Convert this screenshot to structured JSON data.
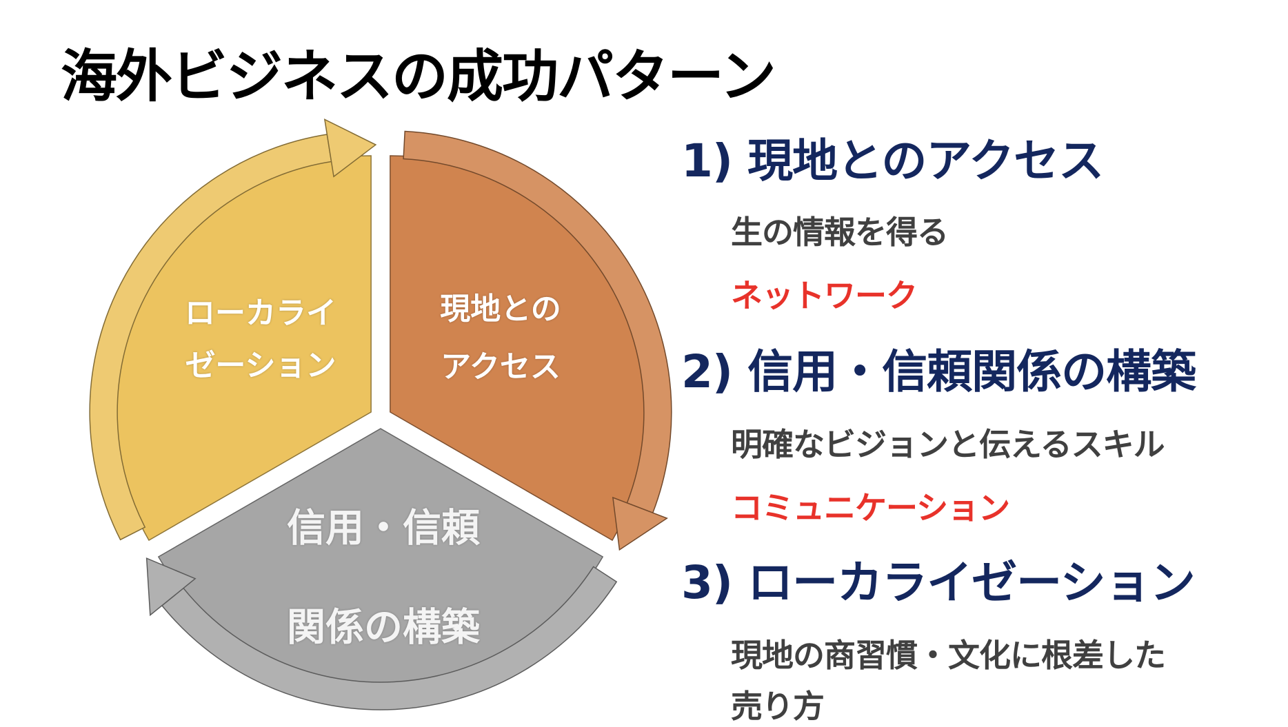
{
  "title": "海外ビジネスの成功パターン",
  "colors": {
    "orange": "#d0844f",
    "yellow": "#ecc35f",
    "gray": "#a6a6a6",
    "navy": "#14275e",
    "red": "#e8322a",
    "text": "#404040"
  },
  "diagram": {
    "segments": [
      {
        "id": "access",
        "lines": [
          "現地との",
          "アクセス"
        ],
        "color": "#d0844f"
      },
      {
        "id": "trust",
        "lines": [
          "信用・信頼",
          "関係の構築"
        ],
        "color": "#a6a6a6"
      },
      {
        "id": "localization",
        "lines": [
          "ローカライ",
          "ゼーション"
        ],
        "color": "#ecc35f"
      }
    ]
  },
  "points": [
    {
      "heading": "1) 現地とのアクセス",
      "detail": "生の情報を得る",
      "keyword": "ネットワーク"
    },
    {
      "heading": "2) 信用・信頼関係の構築",
      "detail": "明確なビジョンと伝えるスキル",
      "keyword": "コミュニケーション"
    },
    {
      "heading": "3) ローカライゼーション",
      "detail_lines": [
        "現地の商習慣・文化に根差した",
        "売り方"
      ]
    }
  ]
}
